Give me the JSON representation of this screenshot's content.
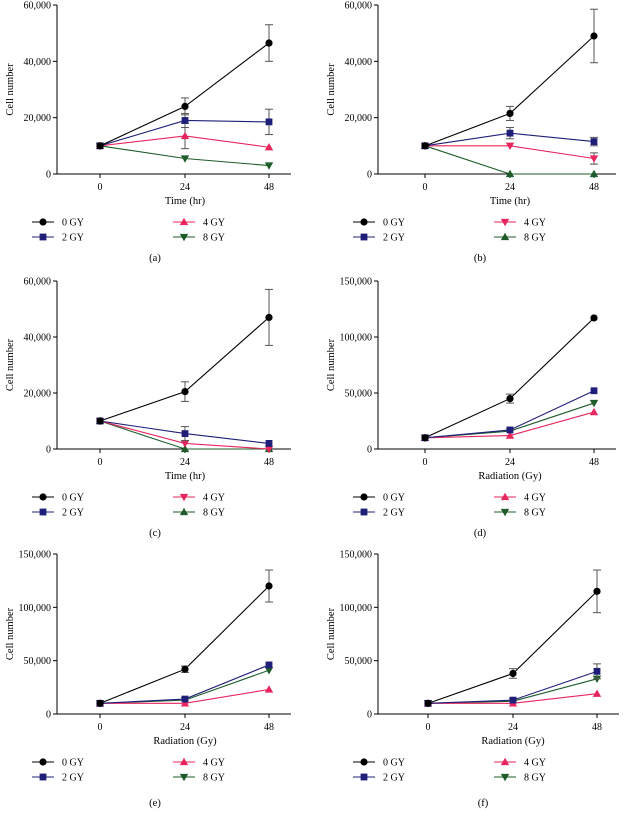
{
  "colors": {
    "axis": "#000000",
    "gy0": "#000000",
    "gy2": "#1f1f7a",
    "gy4": "#e8265e",
    "gy8": "#1e5c2a",
    "errorbar": "#555555"
  },
  "chart_data": [
    {
      "type": "line",
      "panel_label": "(a)",
      "xlabel": "Time (hr)",
      "ylabel": "Cell number",
      "x": [
        0,
        24,
        48
      ],
      "xticks": [
        "0",
        "24",
        "48"
      ],
      "ylim": [
        0,
        60000
      ],
      "yticks": [
        0,
        20000,
        40000,
        60000
      ],
      "ytick_labels": [
        "0",
        "20,000",
        "40,000",
        "60,000"
      ],
      "markers": {
        "gy4": "up",
        "gy8": "down"
      },
      "series": [
        {
          "key": "gy0",
          "name": "0 GY",
          "values": [
            10000,
            24000,
            46500
          ],
          "errors": [
            0,
            3000,
            6500
          ]
        },
        {
          "key": "gy2",
          "name": "2 GY",
          "values": [
            10000,
            19000,
            18500
          ],
          "errors": [
            0,
            2500,
            4500
          ]
        },
        {
          "key": "gy4",
          "name": "4 GY",
          "values": [
            10000,
            13500,
            9500
          ],
          "errors": [
            0,
            4500,
            0
          ]
        },
        {
          "key": "gy8",
          "name": "8 GY",
          "values": [
            10000,
            5500,
            3000
          ],
          "errors": [
            0,
            0,
            0
          ]
        }
      ]
    },
    {
      "type": "line",
      "panel_label": "(b)",
      "xlabel": "Time (hr)",
      "ylabel": "Cell number",
      "x": [
        0,
        24,
        48
      ],
      "xticks": [
        "0",
        "24",
        "48"
      ],
      "ylim": [
        0,
        60000
      ],
      "yticks": [
        0,
        20000,
        40000,
        60000
      ],
      "ytick_labels": [
        "0",
        "20,000",
        "40,000",
        "60,000"
      ],
      "markers": {
        "gy4": "down",
        "gy8": "up"
      },
      "series": [
        {
          "key": "gy0",
          "name": "0 GY",
          "values": [
            10000,
            21500,
            49000
          ],
          "errors": [
            0,
            2500,
            9500
          ]
        },
        {
          "key": "gy2",
          "name": "2 GY",
          "values": [
            10000,
            14500,
            11500
          ],
          "errors": [
            0,
            2000,
            1500
          ]
        },
        {
          "key": "gy4",
          "name": "4 GY",
          "values": [
            10000,
            10000,
            5500
          ],
          "errors": [
            0,
            0,
            2000
          ]
        },
        {
          "key": "gy8",
          "name": "8 GY",
          "values": [
            10000,
            0,
            0
          ],
          "errors": [
            0,
            0,
            0
          ]
        }
      ]
    },
    {
      "type": "line",
      "panel_label": "(c)",
      "xlabel": "Time (hr)",
      "ylabel": "Cell number",
      "x": [
        0,
        24,
        48
      ],
      "xticks": [
        "0",
        "24",
        "48"
      ],
      "ylim": [
        0,
        60000
      ],
      "yticks": [
        0,
        20000,
        40000,
        60000
      ],
      "ytick_labels": [
        "0",
        "20,000",
        "40,000",
        "60,000"
      ],
      "markers": {
        "gy4": "down",
        "gy8": "up"
      },
      "series": [
        {
          "key": "gy0",
          "name": "0 GY",
          "values": [
            10000,
            20500,
            47000
          ],
          "errors": [
            0,
            3500,
            10000
          ]
        },
        {
          "key": "gy2",
          "name": "2 GY",
          "values": [
            10000,
            5500,
            2000
          ],
          "errors": [
            0,
            2500,
            0
          ]
        },
        {
          "key": "gy4",
          "name": "4 GY",
          "values": [
            10000,
            2000,
            0
          ],
          "errors": [
            0,
            0,
            0
          ]
        },
        {
          "key": "gy8",
          "name": "8 GY",
          "values": [
            10000,
            0,
            0
          ],
          "errors": [
            0,
            0,
            0
          ]
        }
      ]
    },
    {
      "type": "line",
      "panel_label": "(d)",
      "xlabel": "Radiation (Gy)",
      "ylabel": "Cell number",
      "x": [
        0,
        24,
        48
      ],
      "xticks": [
        "0",
        "24",
        "48"
      ],
      "ylim": [
        0,
        150000
      ],
      "yticks": [
        0,
        50000,
        100000,
        150000
      ],
      "ytick_labels": [
        "0",
        "50,000",
        "100,000",
        "150,000"
      ],
      "markers": {
        "gy4": "up",
        "gy8": "down"
      },
      "series": [
        {
          "key": "gy0",
          "name": "0 GY",
          "values": [
            10000,
            45000,
            117000
          ],
          "errors": [
            0,
            4000,
            0
          ]
        },
        {
          "key": "gy2",
          "name": "2 GY",
          "values": [
            10000,
            17000,
            52000
          ],
          "errors": [
            0,
            0,
            0
          ]
        },
        {
          "key": "gy4",
          "name": "4 GY",
          "values": [
            10000,
            12000,
            33000
          ],
          "errors": [
            0,
            0,
            0
          ]
        },
        {
          "key": "gy8",
          "name": "8 GY",
          "values": [
            10000,
            16000,
            41000
          ],
          "errors": [
            0,
            0,
            0
          ]
        }
      ]
    },
    {
      "type": "line",
      "panel_label": "(e)",
      "xlabel": "Radiation (Gy)",
      "ylabel": "Cell number",
      "x": [
        0,
        24,
        48
      ],
      "xticks": [
        "0",
        "24",
        "48"
      ],
      "ylim": [
        0,
        150000
      ],
      "yticks": [
        0,
        50000,
        100000,
        150000
      ],
      "ytick_labels": [
        "0",
        "50,000",
        "100,000",
        "150,000"
      ],
      "markers": {
        "gy4": "up",
        "gy8": "down"
      },
      "series": [
        {
          "key": "gy0",
          "name": "0 GY",
          "values": [
            10000,
            42000,
            120000
          ],
          "errors": [
            0,
            3000,
            15000
          ]
        },
        {
          "key": "gy2",
          "name": "2 GY",
          "values": [
            10000,
            14000,
            46000
          ],
          "errors": [
            0,
            0,
            0
          ]
        },
        {
          "key": "gy4",
          "name": "4 GY",
          "values": [
            10000,
            10000,
            23000
          ],
          "errors": [
            0,
            0,
            0
          ]
        },
        {
          "key": "gy8",
          "name": "8 GY",
          "values": [
            10000,
            13000,
            41000
          ],
          "errors": [
            0,
            0,
            0
          ]
        }
      ]
    },
    {
      "type": "line",
      "panel_label": "(f)",
      "xlabel": "Radiation (Gy)",
      "ylabel": "Cell number",
      "x": [
        0,
        24,
        48
      ],
      "xticks": [
        "0",
        "24",
        "48"
      ],
      "ylim": [
        0,
        150000
      ],
      "yticks": [
        0,
        50000,
        100000,
        150000
      ],
      "ytick_labels": [
        "0",
        "50,000",
        "100,000",
        "150,000"
      ],
      "markers": {
        "gy4": "up",
        "gy8": "down"
      },
      "series": [
        {
          "key": "gy0",
          "name": "0 GY",
          "values": [
            10000,
            38000,
            115000
          ],
          "errors": [
            0,
            4500,
            20000
          ]
        },
        {
          "key": "gy2",
          "name": "2 GY",
          "values": [
            10000,
            13000,
            40000
          ],
          "errors": [
            0,
            0,
            7000
          ]
        },
        {
          "key": "gy4",
          "name": "4 GY",
          "values": [
            10000,
            10000,
            19000
          ],
          "errors": [
            0,
            0,
            0
          ]
        },
        {
          "key": "gy8",
          "name": "8 GY",
          "values": [
            10000,
            12000,
            33000
          ],
          "errors": [
            0,
            0,
            0
          ]
        }
      ]
    }
  ]
}
